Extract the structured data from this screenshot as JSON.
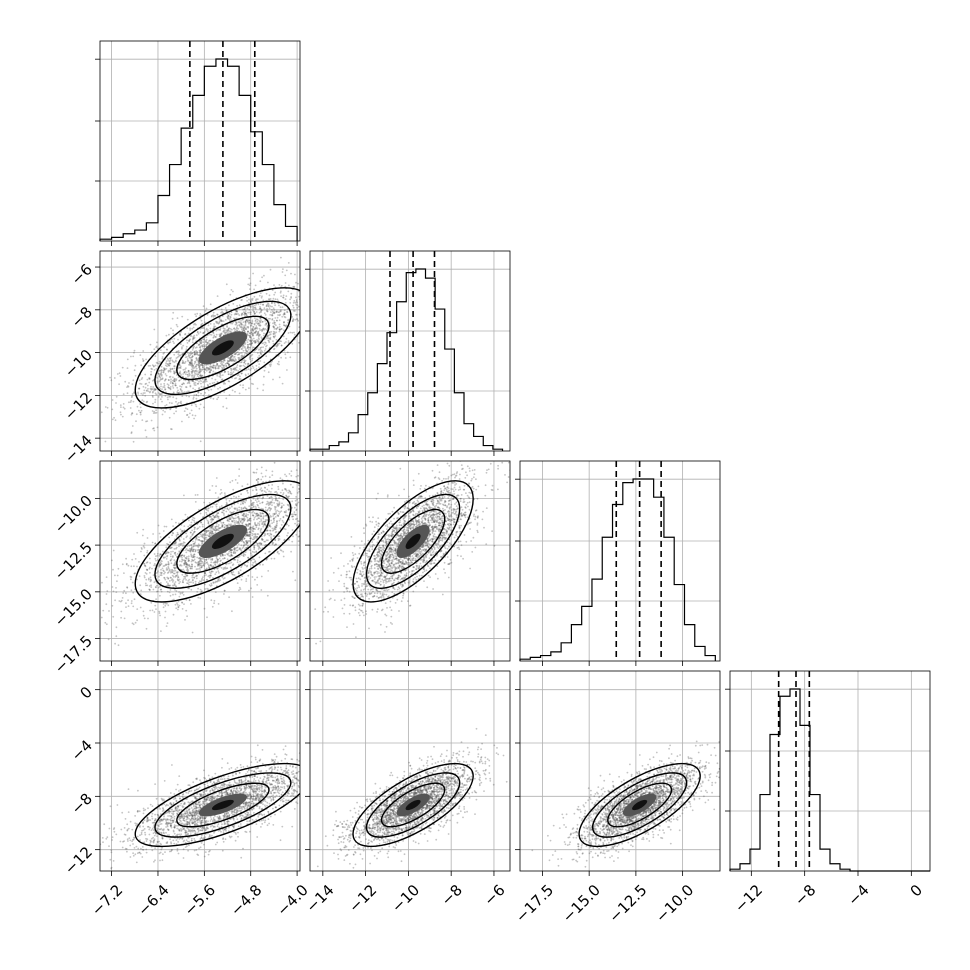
{
  "chart_data": {
    "type": "corner",
    "parameters": 4,
    "grid": true,
    "axes": [
      {
        "range": [
          -7.4,
          -3.95
        ],
        "ticks": [
          -7.2,
          -6.4,
          -5.6,
          -4.8,
          -4.0
        ],
        "tick_labels": [
          "−7.2",
          "−6.4",
          "−5.6",
          "−4.8",
          "−4.0"
        ]
      },
      {
        "range": [
          -14.6,
          -5.25
        ],
        "ticks": [
          -14,
          -12,
          -10,
          -8,
          -6
        ],
        "tick_labels": [
          "−14",
          "−12",
          "−10",
          "−8",
          "−6"
        ]
      },
      {
        "range": [
          -18.7,
          -8.0
        ],
        "ticks": [
          -17.5,
          -15.0,
          -12.5,
          -10.0
        ],
        "tick_labels": [
          "−17.5",
          "−15.0",
          "−12.5",
          "−10.0"
        ]
      },
      {
        "range": [
          -13.6,
          1.4
        ],
        "ticks": [
          -12,
          -8,
          -4,
          0
        ],
        "tick_labels": [
          "−12",
          "−8",
          "−4",
          "0"
        ]
      }
    ],
    "marginals": [
      {
        "quantiles": [
          -5.85,
          -5.28,
          -4.73
        ],
        "bin_edges": [
          -7.4,
          -7.2,
          -7.0,
          -6.8,
          -6.6,
          -6.4,
          -6.2,
          -6.0,
          -5.8,
          -5.6,
          -5.4,
          -5.2,
          -5.0,
          -4.8,
          -4.6,
          -4.4,
          -4.2,
          -4.0
        ],
        "counts": [
          1,
          2,
          4,
          6,
          10,
          25,
          42,
          62,
          80,
          96,
          100,
          96,
          80,
          60,
          42,
          20,
          8
        ]
      },
      {
        "quantiles": [
          -10.86,
          -9.78,
          -8.78
        ],
        "bin_edges": [
          -14.6,
          -14.15,
          -13.7,
          -13.25,
          -12.8,
          -12.35,
          -11.9,
          -11.45,
          -11.0,
          -10.55,
          -10.1,
          -9.65,
          -9.2,
          -8.75,
          -8.3,
          -7.85,
          -7.4,
          -6.95,
          -6.5,
          -6.05,
          -5.6
        ],
        "counts": [
          1,
          1,
          3,
          5,
          10,
          20,
          32,
          48,
          65,
          82,
          98,
          100,
          95,
          78,
          56,
          32,
          15,
          8,
          3,
          1
        ]
      },
      {
        "quantiles": [
          -13.55,
          -12.3,
          -11.15
        ],
        "bin_edges": [
          -18.7,
          -18.15,
          -17.6,
          -17.05,
          -16.5,
          -15.95,
          -15.4,
          -14.85,
          -14.3,
          -13.75,
          -13.2,
          -12.65,
          -12.1,
          -11.55,
          -11.0,
          -10.45,
          -9.9,
          -9.35,
          -8.8,
          -8.25
        ],
        "counts": [
          1,
          2,
          3,
          5,
          10,
          20,
          30,
          45,
          68,
          86,
          98,
          100,
          100,
          90,
          68,
          42,
          20,
          8,
          3
        ]
      },
      {
        "quantiles": [
          -9.95,
          -8.65,
          -7.65
        ],
        "bin_edges": [
          -13.6,
          -12.85,
          -12.1,
          -11.35,
          -10.6,
          -9.85,
          -9.1,
          -8.35,
          -7.6,
          -6.85,
          -6.1,
          -5.35,
          -4.6,
          -3.85,
          -3.1,
          -2.35,
          -1.6,
          -0.85,
          -0.1,
          0.65,
          1.4
        ],
        "counts": [
          1,
          4,
          12,
          42,
          75,
          96,
          100,
          80,
          42,
          12,
          4,
          1,
          0,
          0,
          0,
          0,
          0,
          0,
          0,
          0
        ]
      }
    ]
  }
}
